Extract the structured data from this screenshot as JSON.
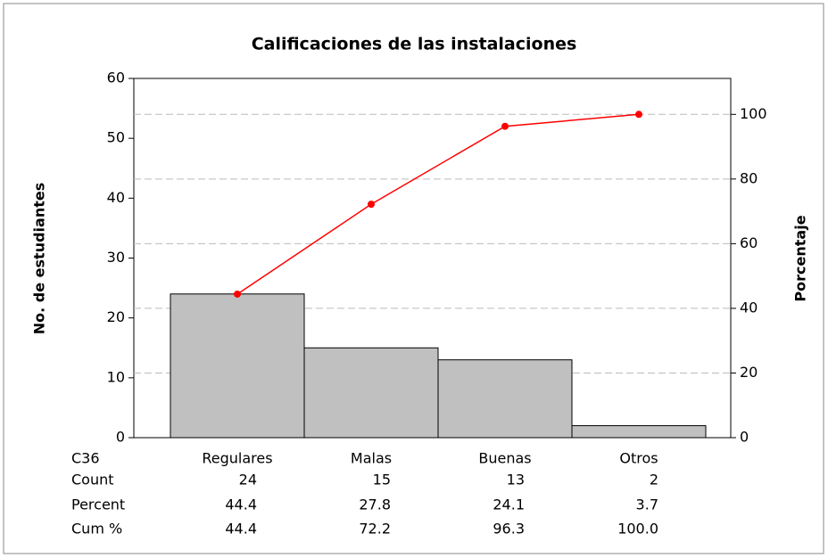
{
  "chart_data": {
    "type": "pareto",
    "title": "Calificaciones de las instalaciones",
    "ylabel": "No. de estudiantes",
    "y2label": "Porcentaje",
    "category_label": "C36",
    "categories": [
      "Regulares",
      "Malas",
      "Buenas",
      "Otros"
    ],
    "series": [
      {
        "name": "Count",
        "color": "#c0c0c0",
        "values": [
          24,
          15,
          13,
          2
        ]
      },
      {
        "name": "Cum %",
        "color": "#ff0000",
        "axis": "y2",
        "values": [
          44.4,
          72.2,
          96.3,
          100
        ],
        "value_labels": [
          "44.4",
          "72.2",
          "96.3",
          "100.0"
        ]
      }
    ],
    "percent": {
      "name": "Percent",
      "values": [
        44.4,
        27.8,
        24.1,
        3.7
      ]
    },
    "ylim": [
      0,
      60
    ],
    "yticks": [
      0,
      10,
      20,
      30,
      40,
      50,
      60
    ],
    "y2lim": [
      0,
      111.11
    ],
    "y2ticks": [
      0,
      20,
      40,
      60,
      80,
      100
    ],
    "grid": true
  }
}
